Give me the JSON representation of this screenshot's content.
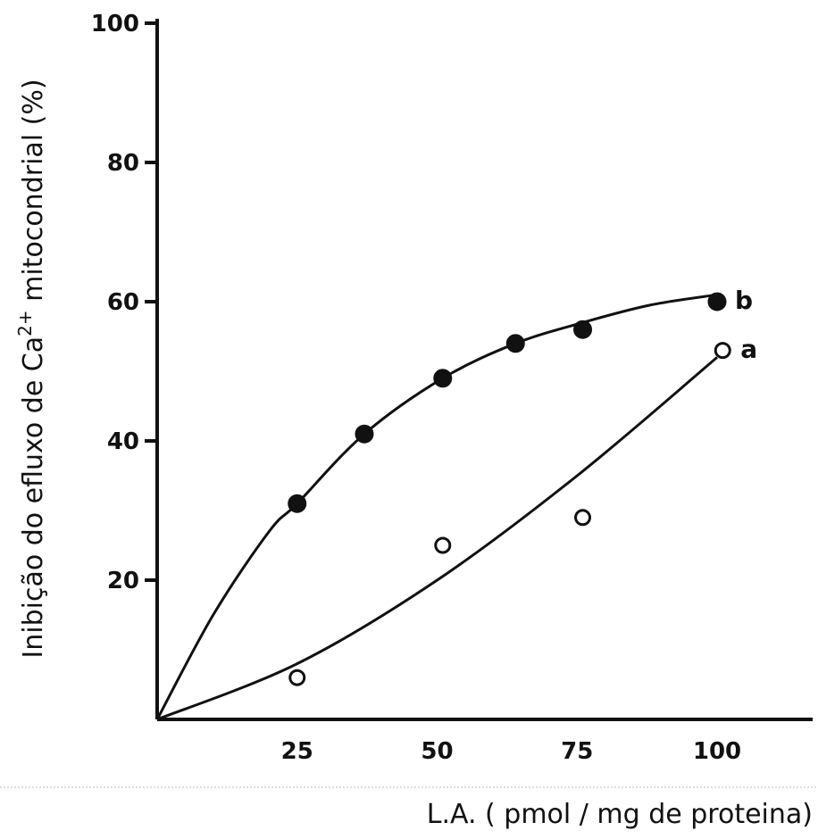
{
  "chart_data": {
    "type": "scatter",
    "xlabel": "L.A. ( pmol / mg de proteina)",
    "ylabel": "Inibição do efluxo de Ca2+ mitocondrial (%)",
    "ylabel_parts": {
      "before": "Inibição do efluxo de Ca",
      "sup": "2+",
      "after": " mitocondrial (%)"
    },
    "xlim": [
      0,
      117
    ],
    "ylim": [
      0,
      100
    ],
    "x_ticks": [
      25,
      50,
      75,
      100
    ],
    "y_ticks": [
      20,
      40,
      60,
      80,
      100
    ],
    "grid": false,
    "series": [
      {
        "name": "b",
        "marker": "filled-circle",
        "x": [
          25,
          37,
          51,
          64,
          76,
          100
        ],
        "y": [
          31,
          41,
          49,
          54,
          56,
          60
        ],
        "curve": [
          [
            0,
            0
          ],
          [
            10,
            15
          ],
          [
            20,
            27
          ],
          [
            25,
            31
          ],
          [
            37,
            41
          ],
          [
            51,
            49
          ],
          [
            64,
            54
          ],
          [
            76,
            57
          ],
          [
            88,
            59.5
          ],
          [
            100,
            61
          ]
        ]
      },
      {
        "name": "a",
        "marker": "open-circle",
        "x": [
          25,
          51,
          76,
          101
        ],
        "y": [
          6,
          25,
          29,
          53
        ],
        "curve": [
          [
            0,
            0
          ],
          [
            25,
            8
          ],
          [
            50,
            20
          ],
          [
            75,
            35
          ],
          [
            100,
            52
          ]
        ]
      }
    ]
  }
}
